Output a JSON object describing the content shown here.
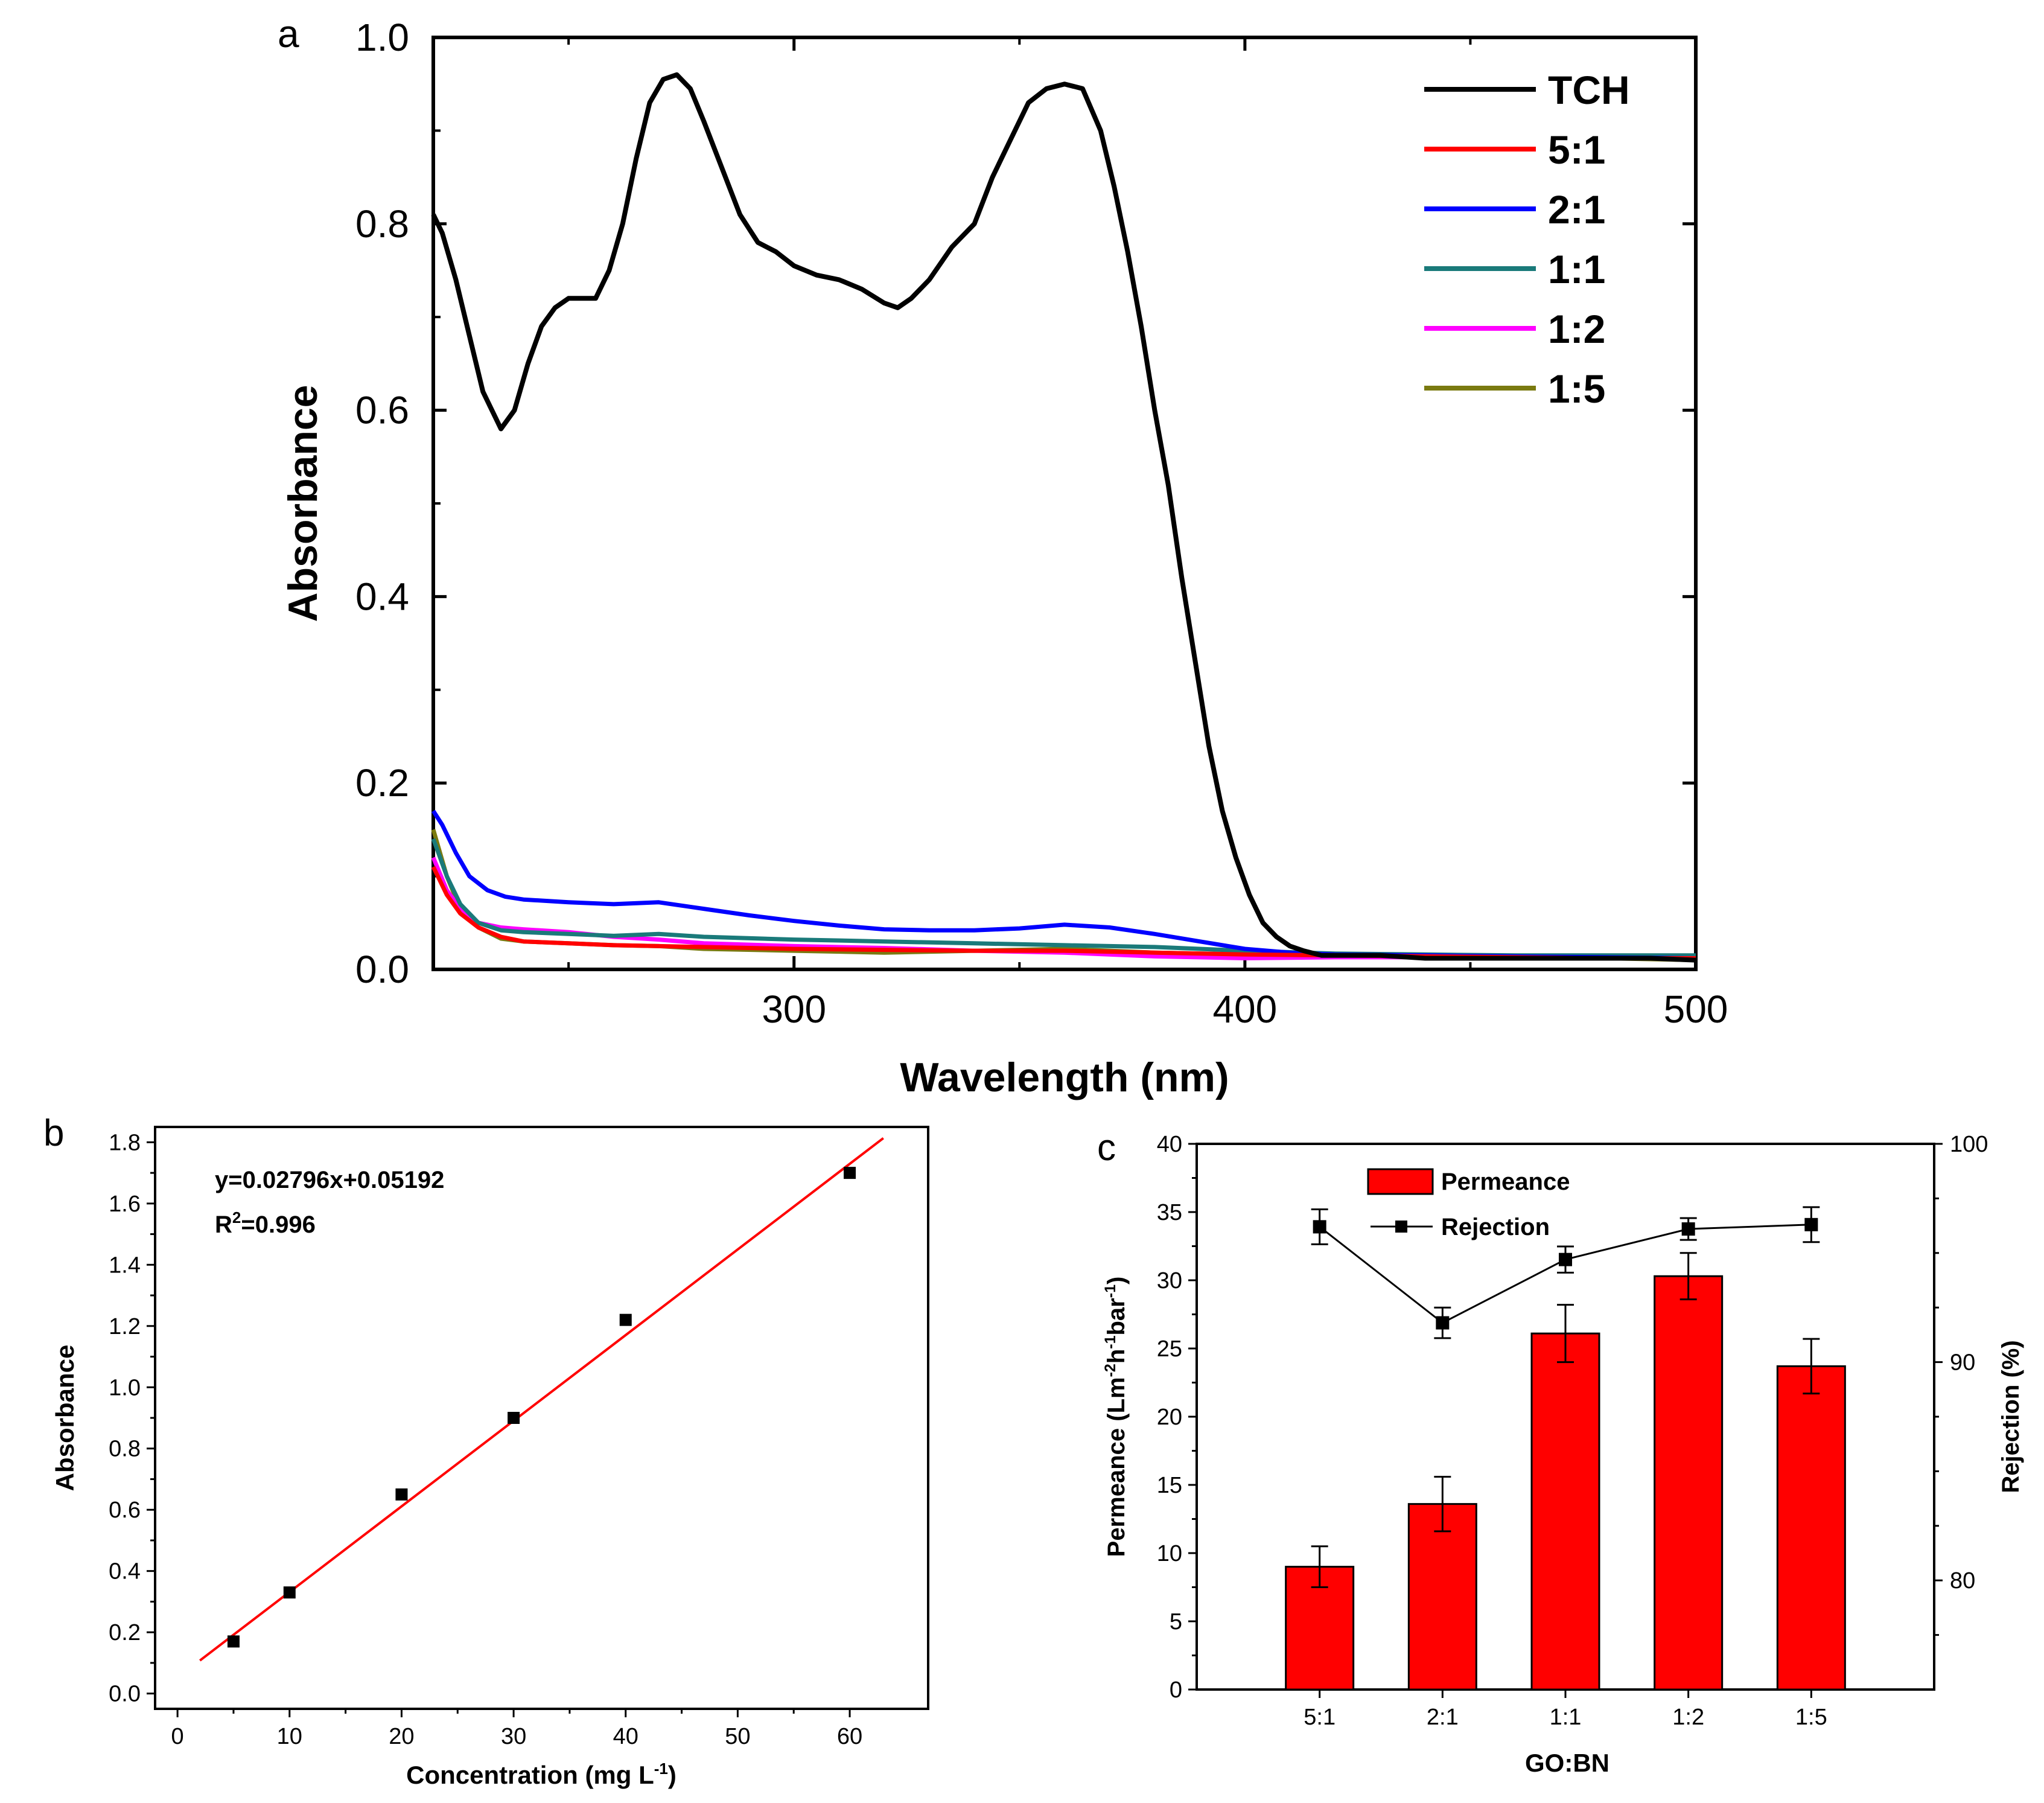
{
  "chart_data": [
    {
      "panel": "a",
      "type": "line",
      "panel_label": "a",
      "xlabel": "Wavelength (nm)",
      "ylabel": "Absorbance",
      "xlim": [
        220,
        500
      ],
      "ylim": [
        0.0,
        1.0
      ],
      "xticks": [
        300,
        400,
        500
      ],
      "xtick_labels": [
        "300",
        "400",
        "500"
      ],
      "yticks": [
        0.0,
        0.2,
        0.4,
        0.6,
        0.8,
        1.0
      ],
      "ytick_labels": [
        "0.0",
        "0.2",
        "0.4",
        "0.6",
        "0.8",
        "1.0"
      ],
      "legend": "top-right",
      "series": [
        {
          "name": "TCH",
          "color": "#000000",
          "x": [
            220,
            222,
            225,
            228,
            231,
            235,
            238,
            241,
            244,
            247,
            250,
            253,
            256,
            259,
            262,
            265,
            268,
            271,
            274,
            277,
            280,
            284,
            288,
            292,
            296,
            300,
            305,
            310,
            315,
            320,
            323,
            326,
            330,
            335,
            340,
            344,
            348,
            352,
            356,
            360,
            364,
            368,
            371,
            374,
            377,
            380,
            383,
            386,
            389,
            392,
            395,
            398,
            401,
            404,
            407,
            410,
            413,
            417,
            420,
            430,
            440,
            450,
            460,
            470,
            480,
            490,
            500
          ],
          "y": [
            0.81,
            0.79,
            0.74,
            0.68,
            0.62,
            0.58,
            0.6,
            0.65,
            0.69,
            0.71,
            0.72,
            0.72,
            0.72,
            0.75,
            0.8,
            0.87,
            0.93,
            0.955,
            0.96,
            0.945,
            0.91,
            0.86,
            0.81,
            0.78,
            0.77,
            0.755,
            0.745,
            0.74,
            0.73,
            0.715,
            0.71,
            0.72,
            0.74,
            0.775,
            0.8,
            0.85,
            0.89,
            0.93,
            0.945,
            0.95,
            0.945,
            0.9,
            0.84,
            0.77,
            0.69,
            0.6,
            0.52,
            0.42,
            0.33,
            0.24,
            0.17,
            0.12,
            0.08,
            0.05,
            0.035,
            0.025,
            0.02,
            0.015,
            0.015,
            0.015,
            0.012,
            0.012,
            0.012,
            0.012,
            0.012,
            0.012,
            0.01
          ]
        },
        {
          "name": "5:1",
          "color": "#ff0000",
          "x": [
            220,
            223,
            226,
            230,
            235,
            240,
            250,
            260,
            270,
            280,
            300,
            320,
            340,
            360,
            380,
            400,
            420,
            440,
            460,
            480,
            500
          ],
          "y": [
            0.11,
            0.08,
            0.06,
            0.045,
            0.035,
            0.03,
            0.028,
            0.026,
            0.025,
            0.024,
            0.022,
            0.021,
            0.02,
            0.02,
            0.018,
            0.016,
            0.015,
            0.014,
            0.013,
            0.012,
            0.012
          ]
        },
        {
          "name": "2:1",
          "color": "#0000ff",
          "x": [
            220,
            222,
            225,
            228,
            232,
            236,
            240,
            250,
            260,
            270,
            280,
            290,
            300,
            310,
            320,
            330,
            340,
            350,
            360,
            370,
            380,
            390,
            400,
            410,
            420,
            440,
            460,
            480,
            500
          ],
          "y": [
            0.17,
            0.155,
            0.125,
            0.1,
            0.085,
            0.078,
            0.075,
            0.072,
            0.07,
            0.072,
            0.065,
            0.058,
            0.052,
            0.047,
            0.043,
            0.042,
            0.042,
            0.044,
            0.048,
            0.045,
            0.038,
            0.03,
            0.022,
            0.018,
            0.016,
            0.015,
            0.014,
            0.013,
            0.012
          ]
        },
        {
          "name": "1:1",
          "color": "#1a7a7a",
          "x": [
            220,
            223,
            226,
            230,
            235,
            240,
            250,
            260,
            270,
            280,
            300,
            320,
            340,
            360,
            380,
            400,
            420,
            440,
            460,
            480,
            500
          ],
          "y": [
            0.14,
            0.1,
            0.07,
            0.05,
            0.042,
            0.04,
            0.038,
            0.036,
            0.038,
            0.035,
            0.032,
            0.03,
            0.028,
            0.026,
            0.024,
            0.02,
            0.017,
            0.016,
            0.015,
            0.015,
            0.015
          ]
        },
        {
          "name": "1:2",
          "color": "#ff00ff",
          "x": [
            220,
            223,
            226,
            230,
            235,
            240,
            250,
            260,
            270,
            280,
            300,
            320,
            340,
            360,
            380,
            400,
            420,
            440,
            460,
            480,
            500
          ],
          "y": [
            0.12,
            0.085,
            0.065,
            0.05,
            0.045,
            0.043,
            0.04,
            0.035,
            0.032,
            0.028,
            0.025,
            0.023,
            0.02,
            0.018,
            0.014,
            0.012,
            0.013,
            0.013,
            0.013,
            0.013,
            0.013
          ]
        },
        {
          "name": "1:5",
          "color": "#7a7a10",
          "x": [
            220,
            223,
            226,
            230,
            235,
            240,
            250,
            260,
            270,
            280,
            300,
            320,
            340,
            360,
            380,
            400,
            420,
            440,
            460,
            480,
            500
          ],
          "y": [
            0.15,
            0.1,
            0.065,
            0.045,
            0.033,
            0.03,
            0.028,
            0.026,
            0.025,
            0.022,
            0.02,
            0.018,
            0.02,
            0.022,
            0.018,
            0.016,
            0.014,
            0.013,
            0.012,
            0.012,
            0.01
          ]
        }
      ]
    },
    {
      "panel": "b",
      "type": "scatter",
      "panel_label": "b",
      "xlabel": "Concentration (mg L",
      "xlabel_sup": "-1",
      "xlabel_end": ")",
      "ylabel": "Absorbance",
      "xlim": [
        0,
        65
      ],
      "ylim": [
        0.0,
        1.85
      ],
      "xticks": [
        0,
        10,
        20,
        30,
        40,
        50,
        60
      ],
      "xtick_labels": [
        "0",
        "10",
        "20",
        "30",
        "40",
        "50",
        "60"
      ],
      "yticks": [
        0.0,
        0.2,
        0.4,
        0.6,
        0.8,
        1.0,
        1.2,
        1.4,
        1.6,
        1.8
      ],
      "ytick_labels": [
        "0.0",
        "0.2",
        "0.4",
        "0.6",
        "0.8",
        "1.0",
        "1.2",
        "1.4",
        "1.6",
        "1.8"
      ],
      "points": {
        "x": [
          5,
          10,
          20,
          30,
          40,
          60
        ],
        "y": [
          0.17,
          0.33,
          0.65,
          0.9,
          1.22,
          1.7
        ]
      },
      "fit": {
        "slope": 0.02796,
        "intercept": 0.05192,
        "x_range": [
          2,
          63
        ],
        "color": "#ff0000"
      },
      "equation": "y=0.02796x+0.05192",
      "r2_prefix": "R",
      "r2_sup": "2",
      "r2_suffix": "=0.996"
    },
    {
      "panel": "c",
      "type": "bar",
      "panel_label": "c",
      "categories": [
        "5:1",
        "2:1",
        "1:1",
        "1:2",
        "1:5"
      ],
      "xlabel": "GO:BN",
      "ylabel_parts": [
        "Permeance (Lm",
        "-2",
        "h",
        "-1",
        "bar",
        "-1",
        ")"
      ],
      "y2label": "Rejection (%)",
      "ylim": [
        0,
        40
      ],
      "y2lim": [
        75,
        100
      ],
      "yticks": [
        0,
        5,
        10,
        15,
        20,
        25,
        30,
        35,
        40
      ],
      "ytick_labels": [
        "0",
        "5",
        "10",
        "15",
        "20",
        "25",
        "30",
        "35",
        "40"
      ],
      "y2ticks": [
        80,
        90,
        100
      ],
      "y2tick_labels": [
        "80",
        "90",
        "100"
      ],
      "legend": "top-left",
      "series": [
        {
          "name": "Permeance",
          "axis": "left",
          "type": "bar",
          "color": "#ff0000",
          "values": [
            9.0,
            13.6,
            26.1,
            30.3,
            23.7
          ],
          "errors": [
            1.5,
            2.0,
            2.1,
            1.7,
            2.0
          ]
        },
        {
          "name": "Rejection",
          "axis": "right",
          "type": "line",
          "color": "#000000",
          "values": [
            96.2,
            91.8,
            94.7,
            96.1,
            96.3
          ],
          "errors": [
            0.8,
            0.7,
            0.6,
            0.5,
            0.8
          ]
        }
      ]
    }
  ]
}
